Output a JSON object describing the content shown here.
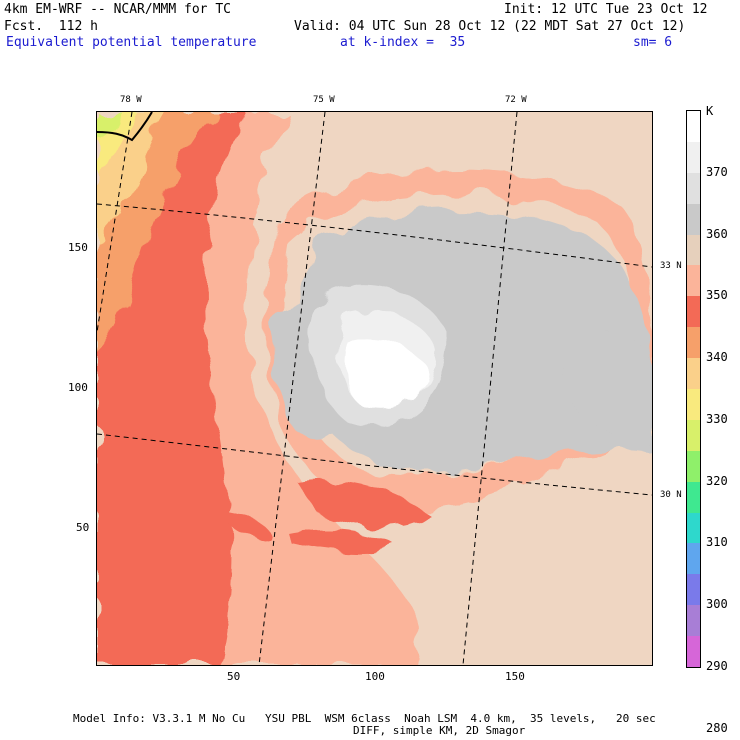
{
  "header": {
    "model": "4km EM-WRF -- NCAR/MMM for TC",
    "init": "Init: 12 UTC Tue 23 Oct 12",
    "fcst": "Fcst.  112 h",
    "valid": "Valid: 04 UTC Sun 28 Oct 12 (22 MDT Sat 27 Oct 12)",
    "field": "Equivalent potential temperature",
    "kindex": "at k-index =  35",
    "sm": "sm= 6"
  },
  "axes": {
    "x_ticks": [
      "50",
      "100",
      "150"
    ],
    "y_ticks": [
      "150",
      "100",
      "50"
    ],
    "lon_labels": [
      "78 W",
      "75 W",
      "72 W"
    ],
    "lat_labels": [
      "33 N",
      "30 N"
    ]
  },
  "colorbar": {
    "unit": "K",
    "levels": [
      "370",
      "360",
      "350",
      "340",
      "330",
      "320",
      "310",
      "300",
      "290",
      "280"
    ],
    "colors": [
      "#ffffff",
      "#f0f0f0",
      "#e0e0e0",
      "#c9c9c9",
      "#e6d0bc",
      "#fbb49a",
      "#f36a56",
      "#f6a06a",
      "#fad08a",
      "#f9ea7e",
      "#d8f06a",
      "#8ff06a",
      "#3fe890",
      "#2ed8cc",
      "#5fa6ee",
      "#7a7aea",
      "#a87ed6",
      "#d666d8"
    ]
  },
  "footer": {
    "line1": "Model Info: V3.3.1 M No Cu   YSU PBL  WSM 6class  Noah LSM  4.0 km,  35 levels,   20 sec",
    "line2": "DIFF, simple KM, 2D Smagor"
  }
}
